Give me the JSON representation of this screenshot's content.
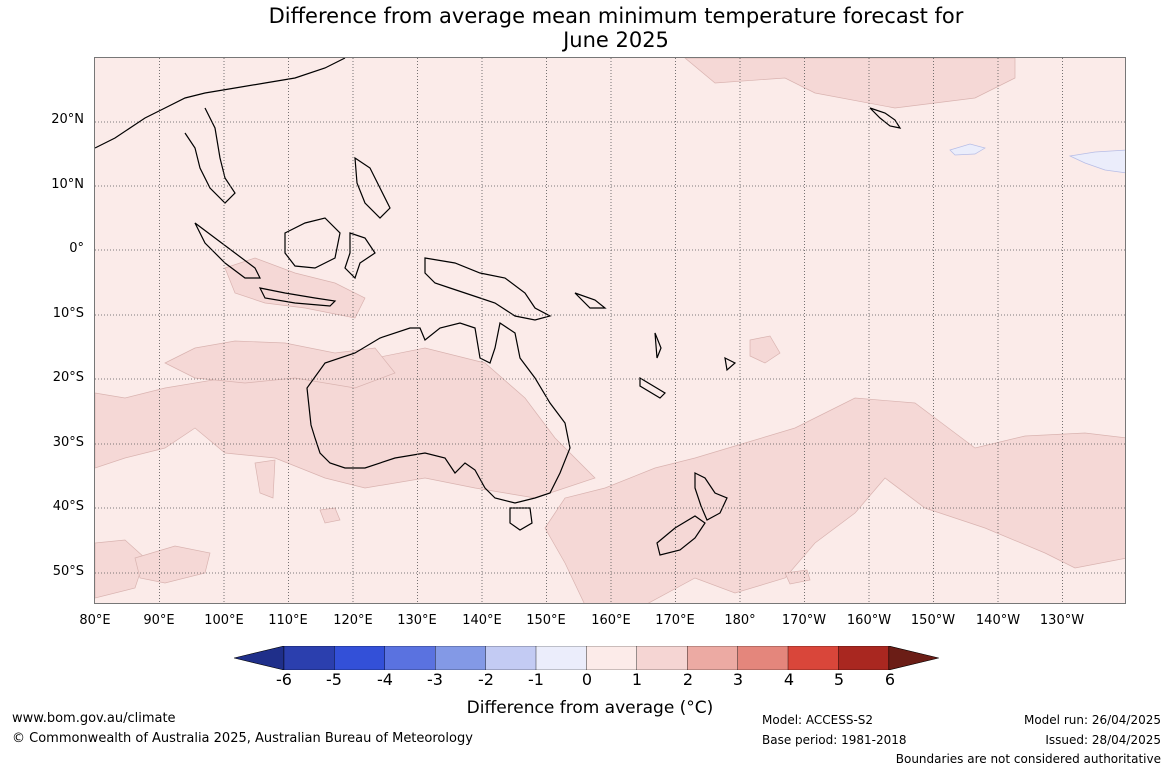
{
  "title_line1": "Difference from average mean minimum temperature forecast for",
  "title_line2": "June 2025",
  "lat_labels": [
    "20°N",
    "10°N",
    "0°",
    "10°S",
    "20°S",
    "30°S",
    "40°S",
    "50°S"
  ],
  "lon_labels": [
    "80°E",
    "90°E",
    "100°E",
    "110°E",
    "120°E",
    "130°E",
    "140°E",
    "150°E",
    "160°E",
    "170°E",
    "180°",
    "170°W",
    "160°W",
    "150°W",
    "140°W",
    "130°W"
  ],
  "colorbar": {
    "ticks": [
      "-6",
      "-5",
      "-4",
      "-3",
      "-2",
      "-1",
      "0",
      "1",
      "2",
      "3",
      "4",
      "5",
      "6"
    ],
    "colors": [
      "#1f2f8a",
      "#2b3fae",
      "#3350d8",
      "#5a72e0",
      "#8399e6",
      "#c3cbf3",
      "#ebedfb",
      "#fcebe9",
      "#f5d5d3",
      "#ecaaa3",
      "#e4867c",
      "#d9463a",
      "#a92720",
      "#6b1d16"
    ],
    "label": "Difference from average (°C)"
  },
  "map_colors": {
    "ocean_fill": "#fbebe9",
    "warm_patch": "#f5d8d6",
    "cool_patch": "#ebedfb",
    "coast": "#000000",
    "border": "#888888",
    "grid": "#555555"
  },
  "footer": {
    "website": "www.bom.gov.au/climate",
    "copyright": "© Commonwealth of Australia 2025, Australian Bureau of Meteorology",
    "model": "Model: ACCESS-S2",
    "base_period": "Base period: 1981-2018",
    "model_run": "Model run: 26/04/2025",
    "issued": "Issued: 28/04/2025",
    "disclaimer": "Boundaries are not considered authoritative"
  }
}
